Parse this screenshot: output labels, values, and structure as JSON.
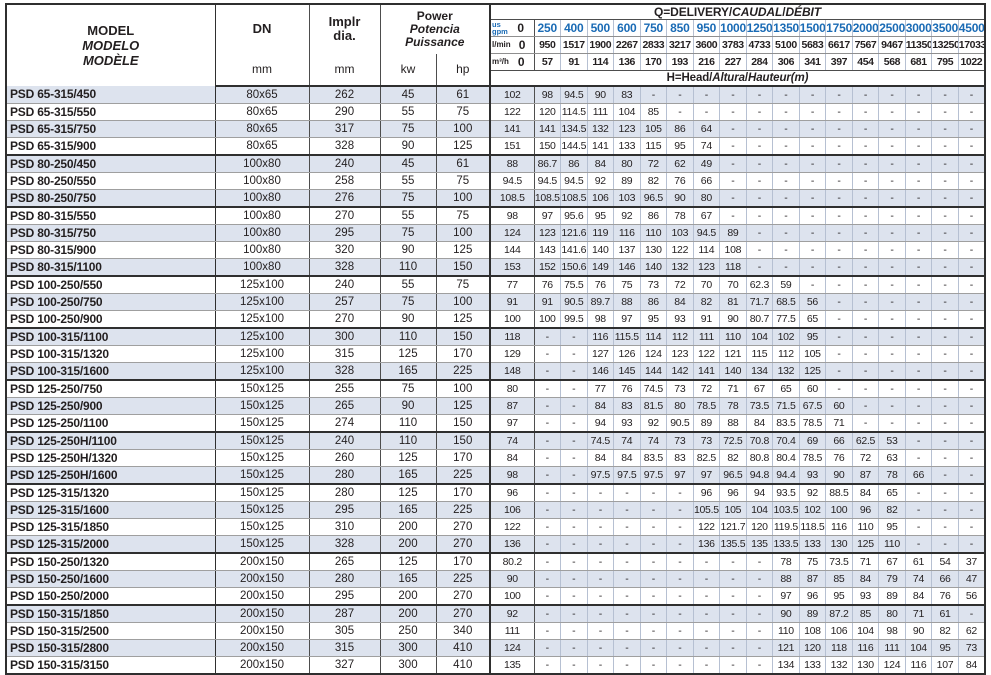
{
  "colors": {
    "header_blue": "#1a6bb5",
    "text_dark": "#231f20",
    "row_shade": "#dde3ee",
    "grid_light": "#b6c0d2",
    "grid_dark": "#2f2f2f"
  },
  "header": {
    "model_en": "MODEL",
    "model_es": "MODELO",
    "model_fr": "MODÈLE",
    "dn_label": "DN",
    "impeller_line1": "Implr",
    "impeller_line2": "dia.",
    "power_en": "Power",
    "power_es": "Potencia",
    "power_fr": "Puissance",
    "unit_mm_dn": "mm",
    "unit_mm_dia": "mm",
    "unit_kw": "kw",
    "unit_hp": "hp",
    "q_title_parts": [
      "Q=DELIVERY/",
      "CAUDAL",
      "/",
      "DÉBIT"
    ],
    "h_title_parts": [
      "H=Head/",
      "Altura",
      "/",
      "Hauteur",
      "(m)"
    ],
    "unit_gpm_line1": "us",
    "unit_gpm_line2": "gpm",
    "unit_lmin": "l/min",
    "unit_m3h": "m³/h",
    "q_gpm": [
      "0",
      "250",
      "400",
      "500",
      "600",
      "750",
      "850",
      "950",
      "1000",
      "1250",
      "1350",
      "1500",
      "1750",
      "2000",
      "2500",
      "3000",
      "3500",
      "4500"
    ],
    "q_lmin": [
      "0",
      "950",
      "1517",
      "1900",
      "2267",
      "2833",
      "3217",
      "3600",
      "3783",
      "4733",
      "5100",
      "5683",
      "6617",
      "7567",
      "9467",
      "11350",
      "13250",
      "17033"
    ],
    "q_m3h": [
      "0",
      "57",
      "91",
      "114",
      "136",
      "170",
      "193",
      "216",
      "227",
      "284",
      "306",
      "341",
      "397",
      "454",
      "568",
      "681",
      "795",
      "1022"
    ]
  },
  "rows": [
    {
      "model": "PSD 65-315/450",
      "dn": "80x65",
      "dia": "262",
      "kw": "45",
      "hp": "61",
      "h": [
        "102",
        "98",
        "94.5",
        "90",
        "83",
        "-",
        "-",
        "-",
        "-",
        "-",
        "-",
        "-",
        "-",
        "-",
        "-",
        "-",
        "-",
        "-"
      ]
    },
    {
      "model": "PSD 65-315/550",
      "dn": "80x65",
      "dia": "290",
      "kw": "55",
      "hp": "75",
      "h": [
        "122",
        "120",
        "114.5",
        "111",
        "104",
        "85",
        "-",
        "-",
        "-",
        "-",
        "-",
        "-",
        "-",
        "-",
        "-",
        "-",
        "-",
        "-"
      ]
    },
    {
      "model": "PSD 65-315/750",
      "dn": "80x65",
      "dia": "317",
      "kw": "75",
      "hp": "100",
      "h": [
        "141",
        "141",
        "134.5",
        "132",
        "123",
        "105",
        "86",
        "64",
        "-",
        "-",
        "-",
        "-",
        "-",
        "-",
        "-",
        "-",
        "-",
        "-"
      ]
    },
    {
      "model": "PSD 65-315/900",
      "dn": "80x65",
      "dia": "328",
      "kw": "90",
      "hp": "125",
      "h": [
        "151",
        "150",
        "144.5",
        "141",
        "133",
        "115",
        "95",
        "74",
        "-",
        "-",
        "-",
        "-",
        "-",
        "-",
        "-",
        "-",
        "-",
        "-"
      ],
      "group_end": true
    },
    {
      "model": "PSD 80-250/450",
      "dn": "100x80",
      "dia": "240",
      "kw": "45",
      "hp": "61",
      "h": [
        "88",
        "86.7",
        "86",
        "84",
        "80",
        "72",
        "62",
        "49",
        "-",
        "-",
        "-",
        "-",
        "-",
        "-",
        "-",
        "-",
        "-",
        "-"
      ]
    },
    {
      "model": "PSD 80-250/550",
      "dn": "100x80",
      "dia": "258",
      "kw": "55",
      "hp": "75",
      "h": [
        "94.5",
        "94.5",
        "94.5",
        "92",
        "89",
        "82",
        "76",
        "66",
        "-",
        "-",
        "-",
        "-",
        "-",
        "-",
        "-",
        "-",
        "-",
        "-"
      ]
    },
    {
      "model": "PSD 80-250/750",
      "dn": "100x80",
      "dia": "276",
      "kw": "75",
      "hp": "100",
      "h": [
        "108.5",
        "108.5",
        "108.5",
        "106",
        "103",
        "96.5",
        "90",
        "80",
        "-",
        "-",
        "-",
        "-",
        "-",
        "-",
        "-",
        "-",
        "-",
        "-"
      ],
      "group_end": true
    },
    {
      "model": "PSD 80-315/550",
      "dn": "100x80",
      "dia": "270",
      "kw": "55",
      "hp": "75",
      "h": [
        "98",
        "97",
        "95.6",
        "95",
        "92",
        "86",
        "78",
        "67",
        "-",
        "-",
        "-",
        "-",
        "-",
        "-",
        "-",
        "-",
        "-",
        "-"
      ]
    },
    {
      "model": "PSD 80-315/750",
      "dn": "100x80",
      "dia": "295",
      "kw": "75",
      "hp": "100",
      "h": [
        "124",
        "123",
        "121.6",
        "119",
        "116",
        "110",
        "103",
        "94.5",
        "89",
        "-",
        "-",
        "-",
        "-",
        "-",
        "-",
        "-",
        "-",
        "-"
      ]
    },
    {
      "model": "PSD 80-315/900",
      "dn": "100x80",
      "dia": "320",
      "kw": "90",
      "hp": "125",
      "h": [
        "144",
        "143",
        "141.6",
        "140",
        "137",
        "130",
        "122",
        "114",
        "108",
        "-",
        "-",
        "-",
        "-",
        "-",
        "-",
        "-",
        "-",
        "-"
      ]
    },
    {
      "model": "PSD 80-315/1100",
      "dn": "100x80",
      "dia": "328",
      "kw": "110",
      "hp": "150",
      "h": [
        "153",
        "152",
        "150.6",
        "149",
        "146",
        "140",
        "132",
        "123",
        "118",
        "-",
        "-",
        "-",
        "-",
        "-",
        "-",
        "-",
        "-",
        "-"
      ],
      "group_end": true
    },
    {
      "model": "PSD 100-250/550",
      "dn": "125x100",
      "dia": "240",
      "kw": "55",
      "hp": "75",
      "h": [
        "77",
        "76",
        "75.5",
        "76",
        "75",
        "73",
        "72",
        "70",
        "70",
        "62.3",
        "59",
        "-",
        "-",
        "-",
        "-",
        "-",
        "-",
        "-"
      ]
    },
    {
      "model": "PSD 100-250/750",
      "dn": "125x100",
      "dia": "257",
      "kw": "75",
      "hp": "100",
      "h": [
        "91",
        "91",
        "90.5",
        "89.7",
        "88",
        "86",
        "84",
        "82",
        "81",
        "71.7",
        "68.5",
        "56",
        "-",
        "-",
        "-",
        "-",
        "-",
        "-"
      ]
    },
    {
      "model": "PSD 100-250/900",
      "dn": "125x100",
      "dia": "270",
      "kw": "90",
      "hp": "125",
      "h": [
        "100",
        "100",
        "99.5",
        "98",
        "97",
        "95",
        "93",
        "91",
        "90",
        "80.7",
        "77.5",
        "65",
        "-",
        "-",
        "-",
        "-",
        "-",
        "-"
      ],
      "group_end": true
    },
    {
      "model": "PSD 100-315/1100",
      "dn": "125x100",
      "dia": "300",
      "kw": "110",
      "hp": "150",
      "h": [
        "118",
        "-",
        "-",
        "116",
        "115.5",
        "114",
        "112",
        "111",
        "110",
        "104",
        "102",
        "95",
        "-",
        "-",
        "-",
        "-",
        "-",
        "-"
      ]
    },
    {
      "model": "PSD 100-315/1320",
      "dn": "125x100",
      "dia": "315",
      "kw": "125",
      "hp": "170",
      "h": [
        "129",
        "-",
        "-",
        "127",
        "126",
        "124",
        "123",
        "122",
        "121",
        "115",
        "112",
        "105",
        "-",
        "-",
        "-",
        "-",
        "-",
        "-"
      ]
    },
    {
      "model": "PSD 100-315/1600",
      "dn": "125x100",
      "dia": "328",
      "kw": "165",
      "hp": "225",
      "h": [
        "148",
        "-",
        "-",
        "146",
        "145",
        "144",
        "142",
        "141",
        "140",
        "134",
        "132",
        "125",
        "-",
        "-",
        "-",
        "-",
        "-",
        "-"
      ],
      "group_end": true
    },
    {
      "model": "PSD 125-250/750",
      "dn": "150x125",
      "dia": "255",
      "kw": "75",
      "hp": "100",
      "h": [
        "80",
        "-",
        "-",
        "77",
        "76",
        "74.5",
        "73",
        "72",
        "71",
        "67",
        "65",
        "60",
        "-",
        "-",
        "-",
        "-",
        "-",
        "-"
      ]
    },
    {
      "model": "PSD 125-250/900",
      "dn": "150x125",
      "dia": "265",
      "kw": "90",
      "hp": "125",
      "h": [
        "87",
        "-",
        "-",
        "84",
        "83",
        "81.5",
        "80",
        "78.5",
        "78",
        "73.5",
        "71.5",
        "67.5",
        "60",
        "-",
        "-",
        "-",
        "-",
        "-"
      ]
    },
    {
      "model": "PSD 125-250/1100",
      "dn": "150x125",
      "dia": "274",
      "kw": "110",
      "hp": "150",
      "h": [
        "97",
        "-",
        "-",
        "94",
        "93",
        "92",
        "90.5",
        "89",
        "88",
        "84",
        "83.5",
        "78.5",
        "71",
        "-",
        "-",
        "-",
        "-",
        "-"
      ],
      "group_end": true
    },
    {
      "model": "PSD 125-250H/1100",
      "dn": "150x125",
      "dia": "240",
      "kw": "110",
      "hp": "150",
      "h": [
        "74",
        "-",
        "-",
        "74.5",
        "74",
        "74",
        "73",
        "73",
        "72.5",
        "70.8",
        "70.4",
        "69",
        "66",
        "62.5",
        "53",
        "-",
        "-",
        "-"
      ]
    },
    {
      "model": "PSD 125-250H/1320",
      "dn": "150x125",
      "dia": "260",
      "kw": "125",
      "hp": "170",
      "h": [
        "84",
        "-",
        "-",
        "84",
        "84",
        "83.5",
        "83",
        "82.5",
        "82",
        "80.8",
        "80.4",
        "78.5",
        "76",
        "72",
        "63",
        "-",
        "-",
        "-"
      ]
    },
    {
      "model": "PSD 125-250H/1600",
      "dn": "150x125",
      "dia": "280",
      "kw": "165",
      "hp": "225",
      "h": [
        "98",
        "-",
        "-",
        "97.5",
        "97.5",
        "97.5",
        "97",
        "97",
        "96.5",
        "94.8",
        "94.4",
        "93",
        "90",
        "87",
        "78",
        "66",
        "-",
        "-"
      ],
      "group_end": true
    },
    {
      "model": "PSD 125-315/1320",
      "dn": "150x125",
      "dia": "280",
      "kw": "125",
      "hp": "170",
      "h": [
        "96",
        "-",
        "-",
        "-",
        "-",
        "-",
        "-",
        "96",
        "96",
        "94",
        "93.5",
        "92",
        "88.5",
        "84",
        "65",
        "-",
        "-",
        "-"
      ]
    },
    {
      "model": "PSD 125-315/1600",
      "dn": "150x125",
      "dia": "295",
      "kw": "165",
      "hp": "225",
      "h": [
        "106",
        "-",
        "-",
        "-",
        "-",
        "-",
        "-",
        "105.5",
        "105",
        "104",
        "103.5",
        "102",
        "100",
        "96",
        "82",
        "-",
        "-",
        "-"
      ]
    },
    {
      "model": "PSD 125-315/1850",
      "dn": "150x125",
      "dia": "310",
      "kw": "200",
      "hp": "270",
      "h": [
        "122",
        "-",
        "-",
        "-",
        "-",
        "-",
        "-",
        "122",
        "121.7",
        "120",
        "119.5",
        "118.5",
        "116",
        "110",
        "95",
        "-",
        "-",
        "-"
      ]
    },
    {
      "model": "PSD 125-315/2000",
      "dn": "150x125",
      "dia": "328",
      "kw": "200",
      "hp": "270",
      "h": [
        "136",
        "-",
        "-",
        "-",
        "-",
        "-",
        "-",
        "136",
        "135.5",
        "135",
        "133.5",
        "133",
        "130",
        "125",
        "110",
        "-",
        "-",
        "-"
      ],
      "group_end": true
    },
    {
      "model": "PSD 150-250/1320",
      "dn": "200x150",
      "dia": "265",
      "kw": "125",
      "hp": "170",
      "h": [
        "80.2",
        "-",
        "-",
        "-",
        "-",
        "-",
        "-",
        "-",
        "-",
        "-",
        "78",
        "75",
        "73.5",
        "71",
        "67",
        "61",
        "54",
        "37"
      ]
    },
    {
      "model": "PSD 150-250/1600",
      "dn": "200x150",
      "dia": "280",
      "kw": "165",
      "hp": "225",
      "h": [
        "90",
        "-",
        "-",
        "-",
        "-",
        "-",
        "-",
        "-",
        "-",
        "-",
        "88",
        "87",
        "85",
        "84",
        "79",
        "74",
        "66",
        "47"
      ]
    },
    {
      "model": "PSD 150-250/2000",
      "dn": "200x150",
      "dia": "295",
      "kw": "200",
      "hp": "270",
      "h": [
        "100",
        "-",
        "-",
        "-",
        "-",
        "-",
        "-",
        "-",
        "-",
        "-",
        "97",
        "96",
        "95",
        "93",
        "89",
        "84",
        "76",
        "56"
      ],
      "group_end": true
    },
    {
      "model": "PSD 150-315/1850",
      "dn": "200x150",
      "dia": "287",
      "kw": "200",
      "hp": "270",
      "h": [
        "92",
        "-",
        "-",
        "-",
        "-",
        "-",
        "-",
        "-",
        "-",
        "-",
        "90",
        "89",
        "87.2",
        "85",
        "80",
        "71",
        "61",
        "-"
      ]
    },
    {
      "model": "PSD 150-315/2500",
      "dn": "200x150",
      "dia": "305",
      "kw": "250",
      "hp": "340",
      "h": [
        "111",
        "-",
        "-",
        "-",
        "-",
        "-",
        "-",
        "-",
        "-",
        "-",
        "110",
        "108",
        "106",
        "104",
        "98",
        "90",
        "82",
        "62"
      ]
    },
    {
      "model": "PSD 150-315/2800",
      "dn": "200x150",
      "dia": "315",
      "kw": "300",
      "hp": "410",
      "h": [
        "124",
        "-",
        "-",
        "-",
        "-",
        "-",
        "-",
        "-",
        "-",
        "-",
        "121",
        "120",
        "118",
        "116",
        "111",
        "104",
        "95",
        "73"
      ]
    },
    {
      "model": "PSD 150-315/3150",
      "dn": "200x150",
      "dia": "327",
      "kw": "300",
      "hp": "410",
      "h": [
        "135",
        "-",
        "-",
        "-",
        "-",
        "-",
        "-",
        "-",
        "-",
        "-",
        "134",
        "133",
        "132",
        "130",
        "124",
        "116",
        "107",
        "84"
      ]
    }
  ]
}
